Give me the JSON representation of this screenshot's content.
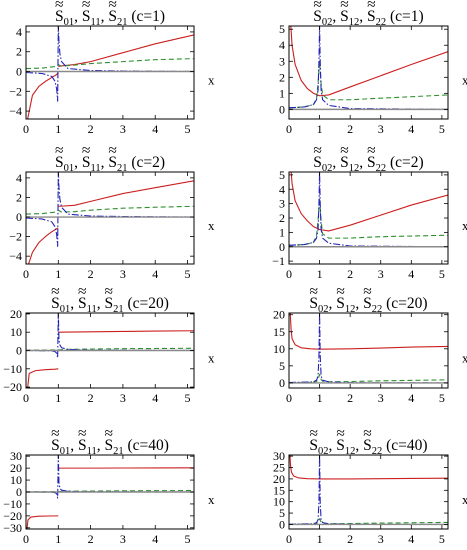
{
  "figure": {
    "colors": {
      "red": "#cc1f1f",
      "green": "#2f8f2f",
      "blue": "#2222b8",
      "gray": "#8a8a8a",
      "frame": "#000000"
    }
  },
  "chart_data": [
    {
      "type": "line",
      "title": "S₀₁, S₁₁, S₂₁ (c=1)",
      "title_parts": [
        "S",
        "01",
        ", ",
        "S",
        "11",
        ", ",
        "S",
        "21",
        " (c=1)"
      ],
      "xlabel": "x",
      "xlim": [
        0,
        5.2
      ],
      "ylim": [
        -4.8,
        4.6
      ],
      "yticks": [
        -4,
        -2,
        0,
        2,
        4
      ],
      "xticks": [
        0,
        1,
        2,
        3,
        4,
        5
      ],
      "series": [
        {
          "color": "red",
          "dash": "solid",
          "x": [
            0.05,
            0.2,
            0.4,
            0.6,
            0.8,
            0.95,
            0.999,
            null,
            1.001,
            1.05,
            1.5,
            2,
            3,
            4,
            5.2
          ],
          "y": [
            -4.8,
            -2.4,
            -1.5,
            -1.0,
            -0.6,
            -0.3,
            -0.1,
            null,
            0.5,
            0.55,
            0.7,
            1.0,
            1.9,
            2.8,
            3.7
          ]
        },
        {
          "color": "green",
          "dash": "dash",
          "x": [
            0,
            0.5,
            0.9,
            1.0,
            1.1,
            1.5,
            2,
            3,
            4,
            5.2
          ],
          "y": [
            0.3,
            0.35,
            0.5,
            0.7,
            0.55,
            0.65,
            0.8,
            1.0,
            1.2,
            1.3
          ]
        },
        {
          "color": "blue",
          "dash": "dashdot",
          "x": [
            0,
            0.5,
            0.8,
            0.9,
            0.95,
            0.98,
            1.0,
            1.02,
            1.05,
            1.1,
            1.3,
            2,
            3,
            5.2
          ],
          "y": [
            -0.1,
            -0.2,
            -0.5,
            -1.0,
            -1.8,
            -3.0,
            4.6,
            3.0,
            1.8,
            1.0,
            0.3,
            0.1,
            0.05,
            0.0
          ]
        },
        {
          "color": "gray",
          "dash": "solid",
          "x": [
            0,
            5.2
          ],
          "y": [
            0,
            0
          ]
        }
      ]
    },
    {
      "type": "line",
      "title": "S₀₂, S₁₂, S₂₂ (c=1)",
      "title_parts": [
        "S",
        "02",
        ", ",
        "S",
        "12",
        ", ",
        "S",
        "22",
        " (c=1)"
      ],
      "xlabel": "x",
      "xlim": [
        0,
        5.2
      ],
      "ylim": [
        -0.6,
        5.2
      ],
      "yticks": [
        0,
        1,
        2,
        3,
        4,
        5
      ],
      "xticks": [
        0,
        1,
        2,
        3,
        4,
        5
      ],
      "series": [
        {
          "color": "red",
          "dash": "solid",
          "x": [
            0.06,
            0.1,
            0.2,
            0.4,
            0.6,
            0.8,
            1.0,
            1.3,
            2,
            3,
            4,
            5.2
          ],
          "y": [
            5.2,
            4.0,
            2.8,
            1.8,
            1.3,
            1.0,
            0.85,
            0.9,
            1.4,
            2.1,
            2.8,
            3.6
          ]
        },
        {
          "color": "green",
          "dash": "dash",
          "x": [
            0,
            0.5,
            0.8,
            0.9,
            0.95,
            1.0,
            1.05,
            1.1,
            1.3,
            2,
            3,
            5.2
          ],
          "y": [
            0.1,
            0.15,
            0.3,
            0.7,
            1.6,
            3.0,
            1.6,
            0.9,
            0.6,
            0.6,
            0.7,
            0.9
          ]
        },
        {
          "color": "blue",
          "dash": "dashdot",
          "x": [
            0,
            0.5,
            0.8,
            0.9,
            0.95,
            0.98,
            1.0,
            1.02,
            1.05,
            1.1,
            1.3,
            2,
            5.2
          ],
          "y": [
            0.1,
            0.15,
            0.3,
            0.6,
            1.2,
            3.0,
            5.2,
            3.0,
            1.2,
            0.6,
            0.25,
            0.05,
            0.0
          ]
        },
        {
          "color": "gray",
          "dash": "solid",
          "x": [
            0,
            5.2
          ],
          "y": [
            0,
            0
          ]
        }
      ]
    },
    {
      "type": "line",
      "title": "S₀₁, S₁₁, S₂₁ (c=2)",
      "title_parts": [
        "S",
        "01",
        ", ",
        "S",
        "11",
        ", ",
        "S",
        "21",
        " (c=2)"
      ],
      "xlabel": "x",
      "xlim": [
        0,
        5.2
      ],
      "ylim": [
        -4.8,
        4.6
      ],
      "yticks": [
        -4,
        -2,
        0,
        2,
        4
      ],
      "xticks": [
        0,
        1,
        2,
        3,
        4,
        5
      ],
      "series": [
        {
          "color": "red",
          "dash": "solid",
          "x": [
            0.08,
            0.2,
            0.4,
            0.6,
            0.8,
            0.95,
            0.999,
            null,
            1.001,
            1.05,
            1.5,
            2,
            3,
            4,
            5.2
          ],
          "y": [
            -4.8,
            -3.6,
            -2.6,
            -2.0,
            -1.5,
            -1.2,
            -1.1,
            null,
            1.1,
            1.1,
            1.2,
            1.6,
            2.4,
            3.0,
            3.7
          ]
        },
        {
          "color": "green",
          "dash": "dash",
          "x": [
            0,
            0.5,
            0.9,
            1.0,
            1.1,
            1.5,
            2,
            3,
            4,
            5.2
          ],
          "y": [
            0.3,
            0.35,
            0.5,
            0.7,
            0.5,
            0.55,
            0.7,
            0.9,
            1.0,
            1.1
          ]
        },
        {
          "color": "blue",
          "dash": "dashdot",
          "x": [
            0,
            0.5,
            0.8,
            0.9,
            0.95,
            0.98,
            1.0,
            1.02,
            1.05,
            1.1,
            1.3,
            2,
            3,
            5.2
          ],
          "y": [
            -0.1,
            -0.2,
            -0.5,
            -1.0,
            -1.8,
            -3.0,
            4.6,
            3.0,
            1.8,
            1.0,
            0.3,
            0.1,
            0.05,
            0.0
          ]
        },
        {
          "color": "gray",
          "dash": "solid",
          "x": [
            0,
            5.2
          ],
          "y": [
            0,
            0
          ]
        }
      ]
    },
    {
      "type": "line",
      "title": "S₀₂, S₁₂, S₂₂ (c=2)",
      "title_parts": [
        "S",
        "02",
        ", ",
        "S",
        "12",
        ", ",
        "S",
        "22",
        " (c=2)"
      ],
      "xlabel": "x",
      "xlim": [
        0,
        5.2
      ],
      "ylim": [
        -1.2,
        5.2
      ],
      "yticks": [
        -1,
        0,
        1,
        2,
        3,
        4,
        5
      ],
      "xticks": [
        0,
        1,
        2,
        3,
        4,
        5
      ],
      "series": [
        {
          "color": "red",
          "dash": "solid",
          "x": [
            0.07,
            0.1,
            0.2,
            0.4,
            0.6,
            0.8,
            1.0,
            1.3,
            2,
            3,
            4,
            5.2
          ],
          "y": [
            5.2,
            4.4,
            3.2,
            2.3,
            1.8,
            1.4,
            1.2,
            1.1,
            1.5,
            2.2,
            2.9,
            3.6
          ]
        },
        {
          "color": "green",
          "dash": "dash",
          "x": [
            0,
            0.5,
            0.8,
            0.9,
            0.95,
            1.0,
            1.05,
            1.1,
            1.3,
            2,
            3,
            5.2
          ],
          "y": [
            0.1,
            0.15,
            0.3,
            0.8,
            1.8,
            3.4,
            1.8,
            0.9,
            0.6,
            0.6,
            0.7,
            0.8
          ]
        },
        {
          "color": "blue",
          "dash": "dashdot",
          "x": [
            0,
            0.5,
            0.8,
            0.9,
            0.95,
            0.98,
            1.0,
            1.02,
            1.05,
            1.1,
            1.3,
            2,
            5.2
          ],
          "y": [
            0.1,
            0.15,
            0.3,
            0.6,
            1.2,
            3.0,
            5.2,
            3.0,
            1.2,
            0.6,
            0.25,
            0.05,
            0.0
          ]
        },
        {
          "color": "gray",
          "dash": "solid",
          "x": [
            0,
            5.2
          ],
          "y": [
            0,
            0
          ]
        }
      ]
    },
    {
      "type": "line",
      "title": "S₀₁, S₁₁, S₂₁ (c=20)",
      "title_parts": [
        "S",
        "01",
        ", ",
        "S",
        "11",
        ", ",
        "S",
        "21",
        " (c=20)"
      ],
      "xlabel": "x",
      "xlim": [
        0,
        5.2
      ],
      "ylim": [
        -20.5,
        20.5
      ],
      "yticks": [
        -20,
        -10,
        0,
        10,
        20
      ],
      "xticks": [
        0,
        1,
        2,
        3,
        4,
        5
      ],
      "series": [
        {
          "color": "red",
          "dash": "solid",
          "x": [
            0.05,
            0.1,
            0.3,
            0.6,
            0.9,
            0.999,
            null,
            1.001,
            2,
            3,
            4,
            5.2
          ],
          "y": [
            -20.5,
            -12.5,
            -11.0,
            -10.5,
            -10.2,
            -10.0,
            null,
            10.0,
            10.2,
            10.4,
            10.6,
            10.8
          ]
        },
        {
          "color": "green",
          "dash": "dash",
          "x": [
            0,
            0.9,
            1.0,
            1.2,
            2,
            3,
            4,
            5.2
          ],
          "y": [
            0.2,
            0.3,
            0.3,
            0.6,
            0.8,
            1.0,
            1.1,
            1.2
          ]
        },
        {
          "color": "blue",
          "dash": "dashdot",
          "x": [
            0,
            0.8,
            0.9,
            0.95,
            0.98,
            1.0,
            1.02,
            1.05,
            1.1,
            1.3,
            2,
            5.2
          ],
          "y": [
            0.0,
            -0.2,
            -0.6,
            -1.5,
            -4.0,
            20.5,
            6.0,
            3.0,
            1.5,
            0.6,
            0.2,
            0.0
          ]
        },
        {
          "color": "gray",
          "dash": "solid",
          "x": [
            0,
            5.2
          ],
          "y": [
            0,
            0
          ]
        }
      ]
    },
    {
      "type": "line",
      "title": "S₀₂, S₁₂, S₂₂ (c=20)",
      "title_parts": [
        "S",
        "02",
        ", ",
        "S",
        "12",
        ", ",
        "S",
        "22",
        " (c=20)"
      ],
      "xlabel": "x",
      "xlim": [
        0,
        5.2
      ],
      "ylim": [
        -1.5,
        20.5
      ],
      "yticks": [
        0,
        5,
        10,
        15,
        20
      ],
      "xticks": [
        0,
        1,
        2,
        3,
        4,
        5
      ],
      "series": [
        {
          "color": "red",
          "dash": "solid",
          "x": [
            0.04,
            0.07,
            0.1,
            0.2,
            0.4,
            0.7,
            1.0,
            2,
            3,
            4,
            5.2
          ],
          "y": [
            20.5,
            15.5,
            13.0,
            11.2,
            10.3,
            10.0,
            9.9,
            10.0,
            10.2,
            10.5,
            10.7
          ]
        },
        {
          "color": "green",
          "dash": "dash",
          "x": [
            0,
            0.5,
            0.8,
            0.9,
            0.95,
            1.0,
            1.05,
            1.1,
            1.3,
            2,
            3,
            5.2
          ],
          "y": [
            0.1,
            0.1,
            0.2,
            0.4,
            1.0,
            2.5,
            1.0,
            0.5,
            0.3,
            0.4,
            0.6,
            0.9
          ]
        },
        {
          "color": "blue",
          "dash": "dashdot",
          "x": [
            0,
            0.8,
            0.9,
            0.95,
            0.98,
            1.0,
            1.02,
            1.05,
            1.1,
            1.3,
            2,
            5.2
          ],
          "y": [
            0.1,
            0.3,
            0.8,
            2.0,
            8.0,
            20.5,
            8.0,
            2.0,
            0.8,
            0.3,
            0.05,
            0.0
          ]
        },
        {
          "color": "gray",
          "dash": "solid",
          "x": [
            0,
            5.2
          ],
          "y": [
            0,
            0
          ]
        }
      ]
    },
    {
      "type": "line",
      "title": "S₀₁, S₁₁, S₂₁ (c=40)",
      "title_parts": [
        "S",
        "01",
        ", ",
        "S",
        "11",
        ", ",
        "S",
        "21",
        " (c=40)"
      ],
      "xlabel": "x",
      "xlim": [
        0,
        5.2
      ],
      "ylim": [
        -31,
        31
      ],
      "yticks": [
        -30,
        -20,
        -10,
        0,
        10,
        20,
        30
      ],
      "xticks": [
        0,
        1,
        2,
        3,
        4,
        5
      ],
      "series": [
        {
          "color": "red",
          "dash": "solid",
          "x": [
            0.03,
            0.06,
            0.15,
            0.4,
            0.7,
            0.999,
            null,
            1.001,
            2,
            3,
            4,
            5.2
          ],
          "y": [
            -31,
            -23.5,
            -21.0,
            -20.3,
            -20.1,
            -20.0,
            null,
            20.0,
            20.0,
            20.1,
            20.2,
            20.3
          ]
        },
        {
          "color": "green",
          "dash": "dash",
          "x": [
            0,
            0.9,
            1.0,
            1.2,
            2,
            3,
            4,
            5.2
          ],
          "y": [
            0.2,
            0.3,
            0.3,
            0.6,
            0.8,
            1.0,
            1.1,
            1.2
          ]
        },
        {
          "color": "blue",
          "dash": "dashdot",
          "x": [
            0,
            0.8,
            0.9,
            0.95,
            0.98,
            1.0,
            1.02,
            1.05,
            1.1,
            1.3,
            2,
            5.2
          ],
          "y": [
            0.0,
            -0.2,
            -0.6,
            -1.5,
            -5.0,
            31,
            8.0,
            3.0,
            1.5,
            0.6,
            0.2,
            0.0
          ]
        },
        {
          "color": "gray",
          "dash": "solid",
          "x": [
            0,
            5.2
          ],
          "y": [
            0,
            0
          ]
        }
      ]
    },
    {
      "type": "line",
      "title": "S₀₂, S₁₂, S₂₂ (c=40)",
      "title_parts": [
        "S",
        "02",
        ", ",
        "S",
        "12",
        ", ",
        "S",
        "22",
        " (c=40)"
      ],
      "xlabel": "x",
      "xlim": [
        0,
        5.2
      ],
      "ylim": [
        -2,
        30.5
      ],
      "yticks": [
        0,
        5,
        10,
        15,
        20,
        25,
        30
      ],
      "xticks": [
        0,
        1,
        2,
        3,
        4,
        5
      ],
      "series": [
        {
          "color": "red",
          "dash": "solid",
          "x": [
            0.03,
            0.05,
            0.08,
            0.15,
            0.3,
            0.6,
            1.0,
            2,
            3,
            4,
            5.2
          ],
          "y": [
            30.5,
            26.0,
            23.0,
            21.3,
            20.5,
            20.1,
            20.0,
            20.0,
            20.1,
            20.2,
            20.3
          ]
        },
        {
          "color": "green",
          "dash": "dash",
          "x": [
            0,
            0.5,
            0.8,
            0.9,
            0.95,
            1.0,
            1.05,
            1.1,
            1.3,
            2,
            3,
            5.2
          ],
          "y": [
            0.1,
            0.1,
            0.2,
            0.4,
            1.0,
            2.5,
            1.0,
            0.5,
            0.3,
            0.4,
            0.6,
            0.9
          ]
        },
        {
          "color": "blue",
          "dash": "dashdot",
          "x": [
            0,
            0.8,
            0.9,
            0.95,
            0.98,
            1.0,
            1.02,
            1.05,
            1.1,
            1.3,
            2,
            5.2
          ],
          "y": [
            0.1,
            0.3,
            0.8,
            2.0,
            10.0,
            30.5,
            10.0,
            2.0,
            0.8,
            0.3,
            0.05,
            0.0
          ]
        },
        {
          "color": "gray",
          "dash": "solid",
          "x": [
            0,
            5.2
          ],
          "y": [
            0,
            0
          ]
        }
      ]
    }
  ]
}
